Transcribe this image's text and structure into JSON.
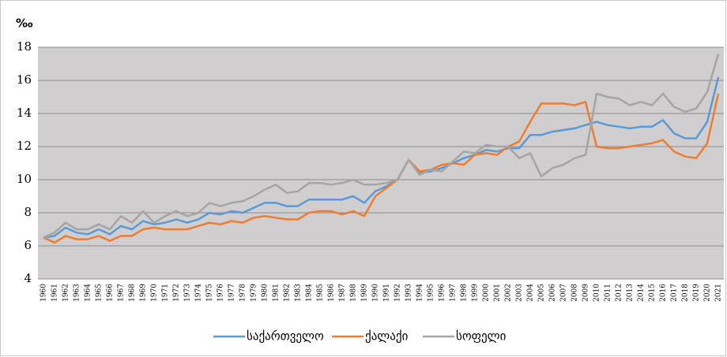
{
  "chart_data": {
    "type": "line",
    "unit_label": "‰",
    "categories": [
      "1960",
      "1961",
      "1962",
      "1963",
      "1964",
      "1965",
      "1966",
      "1967",
      "1968",
      "1969",
      "1970",
      "1971",
      "1972",
      "1973",
      "1974",
      "1975",
      "1976",
      "1977",
      "1978",
      "1979",
      "1980",
      "1981",
      "1982",
      "1983",
      "1984",
      "1985",
      "1986",
      "1987",
      "1988",
      "1989",
      "1990",
      "1991",
      "1992",
      "1993",
      "1994",
      "1995",
      "1996",
      "1997",
      "1998",
      "1999",
      "2000",
      "2001",
      "2002",
      "2003",
      "2004",
      "2005",
      "2006",
      "2007",
      "2008",
      "2009",
      "2010",
      "2011",
      "2012",
      "2013",
      "2014",
      "2015",
      "2016",
      "2017",
      "2018",
      "2019",
      "2020",
      "2021"
    ],
    "series": [
      {
        "name": "საქართველო",
        "color": "#5b9bd5",
        "values": [
          6.5,
          6.6,
          7.1,
          6.8,
          6.7,
          7.0,
          6.7,
          7.2,
          7.0,
          7.5,
          7.3,
          7.4,
          7.6,
          7.4,
          7.6,
          8.0,
          7.9,
          8.1,
          8.0,
          8.3,
          8.6,
          8.6,
          8.4,
          8.4,
          8.8,
          8.8,
          8.8,
          8.8,
          9.0,
          8.6,
          9.3,
          9.6,
          10.0,
          11.2,
          10.4,
          10.5,
          10.7,
          11.0,
          11.3,
          11.5,
          11.8,
          11.7,
          11.9,
          11.9,
          12.7,
          12.7,
          12.9,
          13.0,
          13.1,
          13.3,
          13.5,
          13.3,
          13.2,
          13.1,
          13.2,
          13.2,
          13.6,
          12.8,
          12.5,
          12.5,
          13.5,
          16.2
        ]
      },
      {
        "name": "ქალაქი",
        "color": "#ed7d31",
        "values": [
          6.5,
          6.2,
          6.6,
          6.4,
          6.4,
          6.6,
          6.3,
          6.6,
          6.6,
          7.0,
          7.1,
          7.0,
          7.0,
          7.0,
          7.2,
          7.4,
          7.3,
          7.5,
          7.4,
          7.7,
          7.8,
          7.7,
          7.6,
          7.6,
          8.0,
          8.1,
          8.1,
          7.9,
          8.1,
          7.8,
          9.0,
          9.5,
          10.0,
          11.2,
          10.5,
          10.6,
          10.9,
          11.0,
          10.9,
          11.5,
          11.6,
          11.5,
          12.0,
          12.3,
          13.5,
          14.6,
          14.6,
          14.6,
          14.5,
          14.7,
          12.0,
          11.9,
          11.9,
          12.0,
          12.1,
          12.2,
          12.4,
          11.7,
          11.4,
          11.3,
          12.2,
          15.2
        ]
      },
      {
        "name": "სოფელი",
        "color": "#a5a5a5",
        "values": [
          6.5,
          6.8,
          7.4,
          7.0,
          7.0,
          7.3,
          7.0,
          7.8,
          7.4,
          8.1,
          7.4,
          7.8,
          8.1,
          7.8,
          8.0,
          8.6,
          8.4,
          8.6,
          8.7,
          9.0,
          9.4,
          9.7,
          9.2,
          9.3,
          9.8,
          9.8,
          9.7,
          9.8,
          10.0,
          9.7,
          9.7,
          9.8,
          10.0,
          11.2,
          10.3,
          10.6,
          10.5,
          11.1,
          11.7,
          11.6,
          12.1,
          12.0,
          12.0,
          11.3,
          11.6,
          10.2,
          10.7,
          10.9,
          11.3,
          11.5,
          15.2,
          15.0,
          14.9,
          14.5,
          14.7,
          14.5,
          15.2,
          14.4,
          14.1,
          14.3,
          15.3,
          17.6
        ]
      }
    ],
    "ylim": [
      4,
      18
    ],
    "yticks": [
      4,
      6,
      8,
      10,
      12,
      14,
      16,
      18
    ],
    "grid": true,
    "legend": "bottom"
  }
}
